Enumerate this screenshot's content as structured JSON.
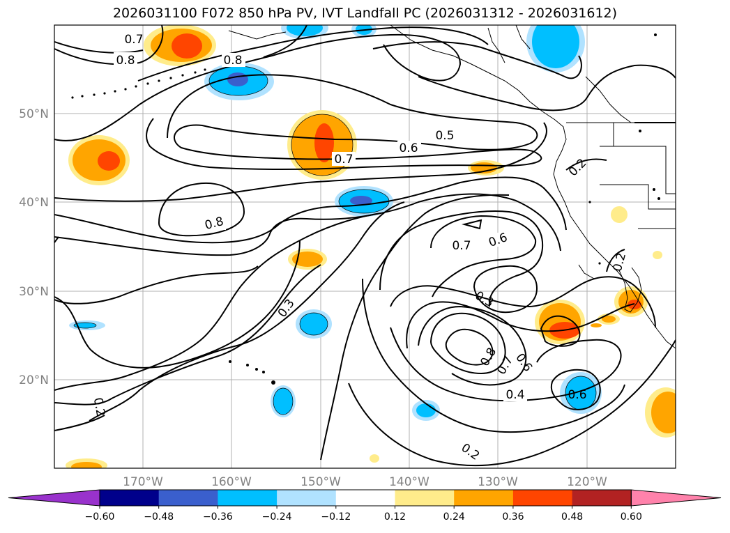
{
  "title": "2026031100 F072 850 hPa PV, IVT Landfall PC (2026031312 - 2026031612)",
  "lat_labels": [
    "50°N",
    "40°N",
    "30°N",
    "20°N"
  ],
  "lon_labels": [
    "170°W",
    "160°W",
    "150°W",
    "140°W",
    "130°W",
    "120°W"
  ],
  "contour_labels": [
    "0.7",
    "0.8",
    "0.8",
    "0.5",
    "0.6",
    "0.7",
    "0.2",
    "0.8",
    "0.7",
    "0.6",
    "0.3",
    "0.3",
    "0.2",
    "0.8",
    "0.7",
    "0.6",
    "0.4",
    "0.6",
    "0.2",
    "0.2"
  ],
  "colorbar": {
    "ticks": [
      "−0.60",
      "−0.48",
      "−0.36",
      "−0.24",
      "−0.12",
      "0.12",
      "0.24",
      "0.36",
      "0.48",
      "0.60"
    ],
    "colors": [
      "#9932cc",
      "#00008b",
      "#3a5fcd",
      "#00bfff",
      "#b0e2ff",
      "#ffffff",
      "#ffec8b",
      "#ffa500",
      "#ff4500",
      "#b22222",
      "#ff82ab"
    ]
  }
}
